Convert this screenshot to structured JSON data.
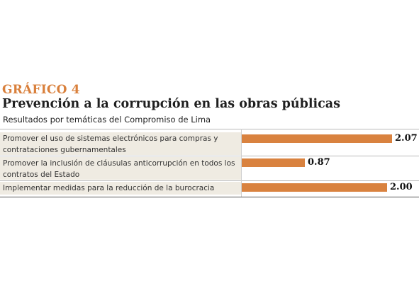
{
  "header": {
    "kicker": "GRÁFICO 4",
    "title": "Prevención a la corrupción en las obras públicas",
    "subtitle": "Resultados por temáticas del Compromiso de Lima"
  },
  "colors": {
    "accent": "#d9803c",
    "bar": "#d9823f",
    "row_background": "#efebe2"
  },
  "chart_data": {
    "type": "bar",
    "orientation": "horizontal",
    "title": "Prevención a la corrupción en las obras públicas",
    "subtitle": "Resultados por temáticas del Compromiso de Lima",
    "categories": [
      "Promover el uso de sistemas electrónicos para compras y contrataciones gubernamentales",
      "Promover la inclusión de cláusulas anticorrupción en todos los contratos del Estado",
      "Implementar medidas para la reducción de la burocracia"
    ],
    "values": [
      2.07,
      0.87,
      2.0
    ],
    "value_labels": [
      "2.07",
      "0.87",
      "2.00"
    ],
    "xlim": [
      0,
      2.07
    ],
    "xlabel": "",
    "ylabel": "",
    "grid": false,
    "legend": "none"
  }
}
